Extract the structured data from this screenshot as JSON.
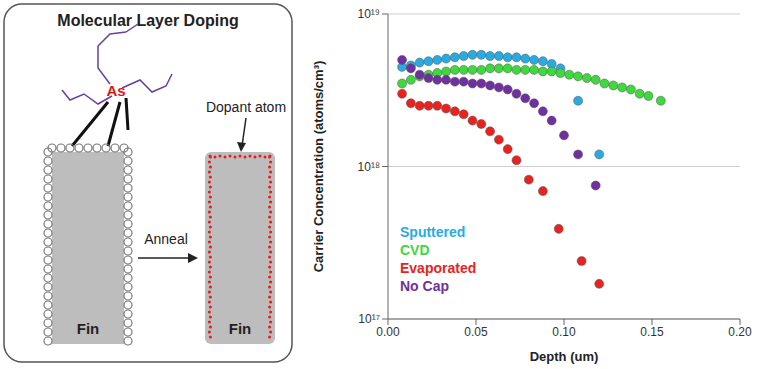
{
  "diagram": {
    "title": "Molecular Layer Doping",
    "molecule_atom": "As",
    "fin_labels": [
      "Fin",
      "Fin"
    ],
    "arrow_label": "Anneal",
    "annotation": "Dopant atom"
  },
  "chart_data": {
    "type": "scatter",
    "xlabel": "Depth (um)",
    "ylabel": "Carrier Concentration (atoms/cm³)",
    "xlim": [
      0,
      0.2
    ],
    "ylim": [
      1e+17,
      1e+19
    ],
    "xticks": [
      {
        "value": 0,
        "label": "0.00"
      },
      {
        "value": 0.05,
        "label": "0.05"
      },
      {
        "value": 0.1,
        "label": "0.10"
      },
      {
        "value": 0.15,
        "label": "0.15"
      },
      {
        "value": 0.2,
        "label": "0.20"
      }
    ],
    "yticks": [
      {
        "value": 1e+17,
        "label": "10¹⁷"
      },
      {
        "value": 1e+18,
        "label": "10¹⁸"
      },
      {
        "value": 1e+19,
        "label": "10¹⁹"
      }
    ],
    "log": "y",
    "grid": true,
    "legend": "lower left",
    "marker": "circle",
    "series": [
      {
        "name": "Sputtered",
        "color": "#29abe2",
        "x": [
          0.008,
          0.013,
          0.018,
          0.023,
          0.028,
          0.033,
          0.038,
          0.043,
          0.048,
          0.053,
          0.058,
          0.063,
          0.068,
          0.073,
          0.078,
          0.083,
          0.088,
          0.093,
          0.098,
          0.108,
          0.12
        ],
        "values": [
          4.5e+18,
          4.6e+18,
          4.8e+18,
          4.9e+18,
          5e+18,
          5.1e+18,
          5.2e+18,
          5.3e+18,
          5.4e+18,
          5.4e+18,
          5.3e+18,
          5.3e+18,
          5.2e+18,
          5.2e+18,
          5.1e+18,
          5e+18,
          4.9e+18,
          4.7e+18,
          4.4e+18,
          2.7e+18,
          1.2e+18
        ]
      },
      {
        "name": "CVD",
        "color": "#3fd83f",
        "x": [
          0.008,
          0.013,
          0.018,
          0.023,
          0.028,
          0.033,
          0.038,
          0.043,
          0.048,
          0.053,
          0.058,
          0.063,
          0.068,
          0.073,
          0.078,
          0.083,
          0.088,
          0.093,
          0.098,
          0.103,
          0.108,
          0.113,
          0.118,
          0.123,
          0.128,
          0.133,
          0.138,
          0.143,
          0.148,
          0.155
        ],
        "values": [
          3.5e+18,
          3.7e+18,
          3.9e+18,
          4e+18,
          4.1e+18,
          4.2e+18,
          4.3e+18,
          4.3e+18,
          4.3e+18,
          4.3e+18,
          4.4e+18,
          4.4e+18,
          4.4e+18,
          4.3e+18,
          4.3e+18,
          4.3e+18,
          4.2e+18,
          4.2e+18,
          4.1e+18,
          4e+18,
          3.9e+18,
          3.8e+18,
          3.7e+18,
          3.5e+18,
          3.4e+18,
          3.3e+18,
          3.2e+18,
          3e+18,
          2.9e+18,
          2.7e+18
        ]
      },
      {
        "name": "Evaporated",
        "color": "#e8231f",
        "x": [
          0.008,
          0.013,
          0.018,
          0.023,
          0.028,
          0.033,
          0.038,
          0.043,
          0.048,
          0.053,
          0.058,
          0.063,
          0.068,
          0.073,
          0.08,
          0.088,
          0.097,
          0.11,
          0.12
        ],
        "values": [
          3e+18,
          2.6e+18,
          2.5e+18,
          2.5e+18,
          2.5e+18,
          2.4e+18,
          2.3e+18,
          2.2e+18,
          2e+18,
          1.9e+18,
          1.7e+18,
          1.5e+18,
          1.3e+18,
          1.1e+18,
          8.2e+17,
          6.9e+17,
          3.9e+17,
          2.4e+17,
          1.7e+17
        ]
      },
      {
        "name": "No Cap",
        "color": "#7030a0",
        "x": [
          0.008,
          0.013,
          0.018,
          0.023,
          0.028,
          0.033,
          0.038,
          0.043,
          0.048,
          0.053,
          0.058,
          0.063,
          0.068,
          0.073,
          0.078,
          0.083,
          0.088,
          0.093,
          0.1,
          0.108,
          0.118
        ],
        "values": [
          5e+18,
          4.4e+18,
          4e+18,
          3.8e+18,
          3.7e+18,
          3.7e+18,
          3.6e+18,
          3.6e+18,
          3.5e+18,
          3.5e+18,
          3.4e+18,
          3.3e+18,
          3.2e+18,
          3e+18,
          2.8e+18,
          2.6e+18,
          2.3e+18,
          2e+18,
          1.6e+18,
          1.2e+18,
          7.5e+17
        ]
      }
    ]
  }
}
